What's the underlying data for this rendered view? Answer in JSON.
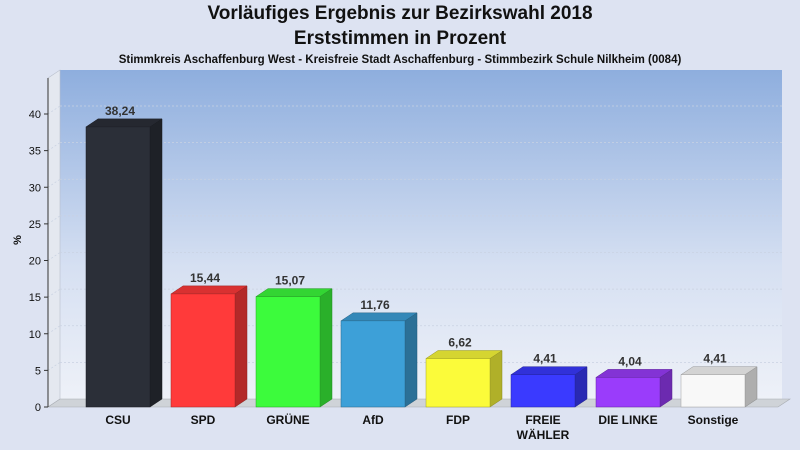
{
  "chart_data": {
    "type": "bar",
    "title": "Vorläufiges Ergebnis zur Bezirkswahl 2018",
    "subtitle": "Erststimmen in Prozent",
    "subtitle2": "Stimmkreis Aschaffenburg West - Kreisfreie Stadt Aschaffenburg - Stimmbezirk Schule Nilkheim (0084)",
    "ylabel": "%",
    "xlabel": "",
    "ylim": [
      0,
      40
    ],
    "yticks": [
      0,
      5,
      10,
      15,
      20,
      25,
      30,
      35,
      40
    ],
    "grid": true,
    "categories": [
      "CSU",
      "SPD",
      "GRÜNE",
      "AfD",
      "FDP",
      "FREIE WÄHLER",
      "DIE LINKE",
      "Sonstige"
    ],
    "values": [
      38.24,
      15.44,
      15.07,
      11.76,
      6.62,
      4.41,
      4.04,
      4.41
    ],
    "value_labels": [
      "38,24",
      "15,44",
      "15,07",
      "11,76",
      "6,62",
      "4,41",
      "4,04",
      "4,41"
    ],
    "colors": [
      "#2b2f38",
      "#ff3a3a",
      "#3cfb3c",
      "#3da0d8",
      "#fbfb3a",
      "#3a3aff",
      "#9a3cfb",
      "#f8f8f8"
    ]
  }
}
